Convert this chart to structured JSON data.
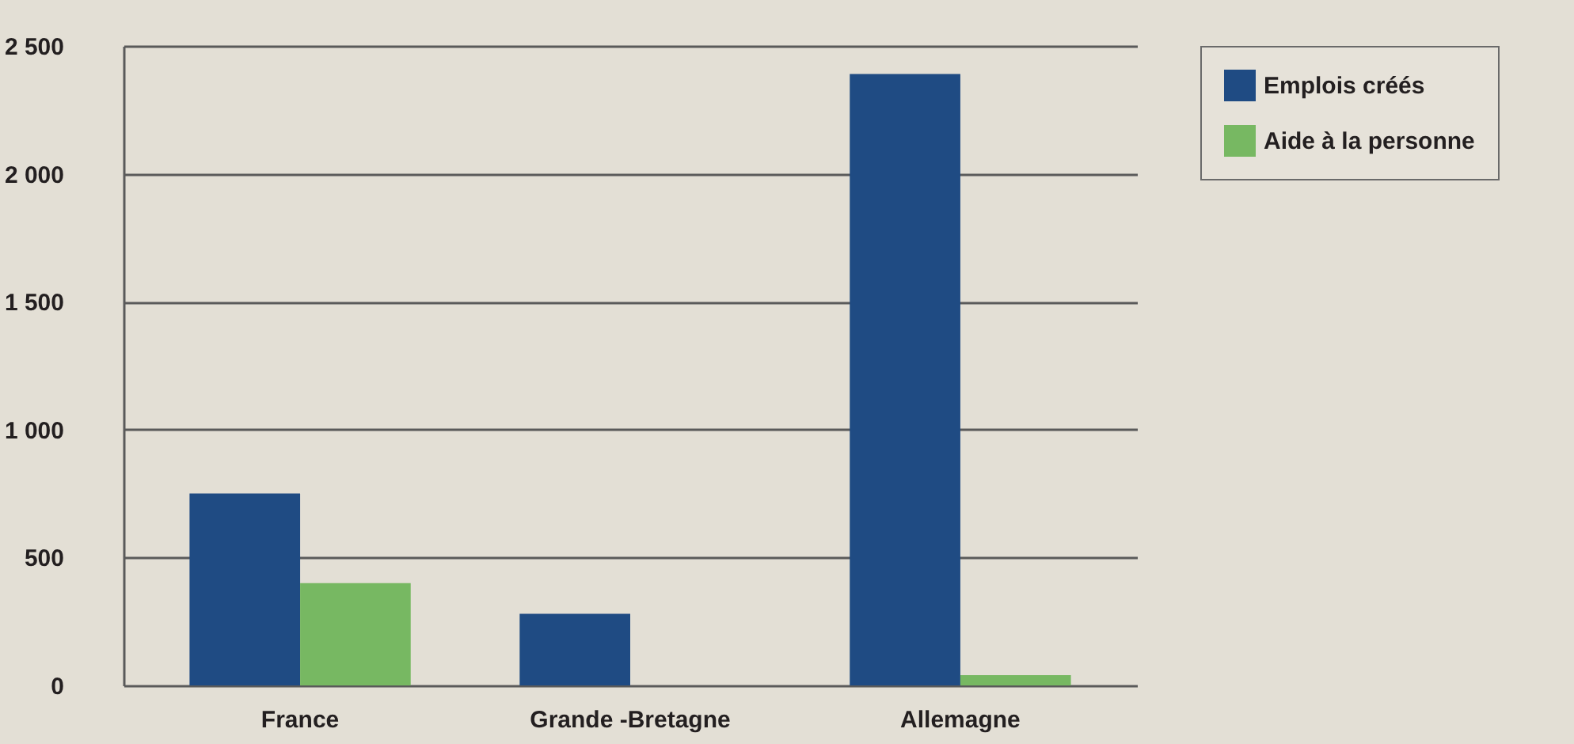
{
  "chart_data": {
    "type": "bar",
    "categories": [
      "France",
      "Grande -Bretagne",
      "Allemagne"
    ],
    "series": [
      {
        "name": "Emplois créés",
        "color": "#1f4b83",
        "values": [
          750,
          280,
          2390
        ]
      },
      {
        "name": "Aide à la personne",
        "color": "#77b862",
        "values": [
          400,
          null,
          40
        ]
      }
    ],
    "ylim": [
      0,
      2500
    ],
    "yticks": [
      0,
      500,
      {
        "value": 1000,
        "label": "1 000"
      },
      {
        "value": 1500,
        "label": "1 500"
      },
      {
        "value": 2000,
        "label": "2 000"
      },
      {
        "value": 2500,
        "label": "2 500"
      }
    ],
    "grid": "y",
    "legend": "right"
  }
}
